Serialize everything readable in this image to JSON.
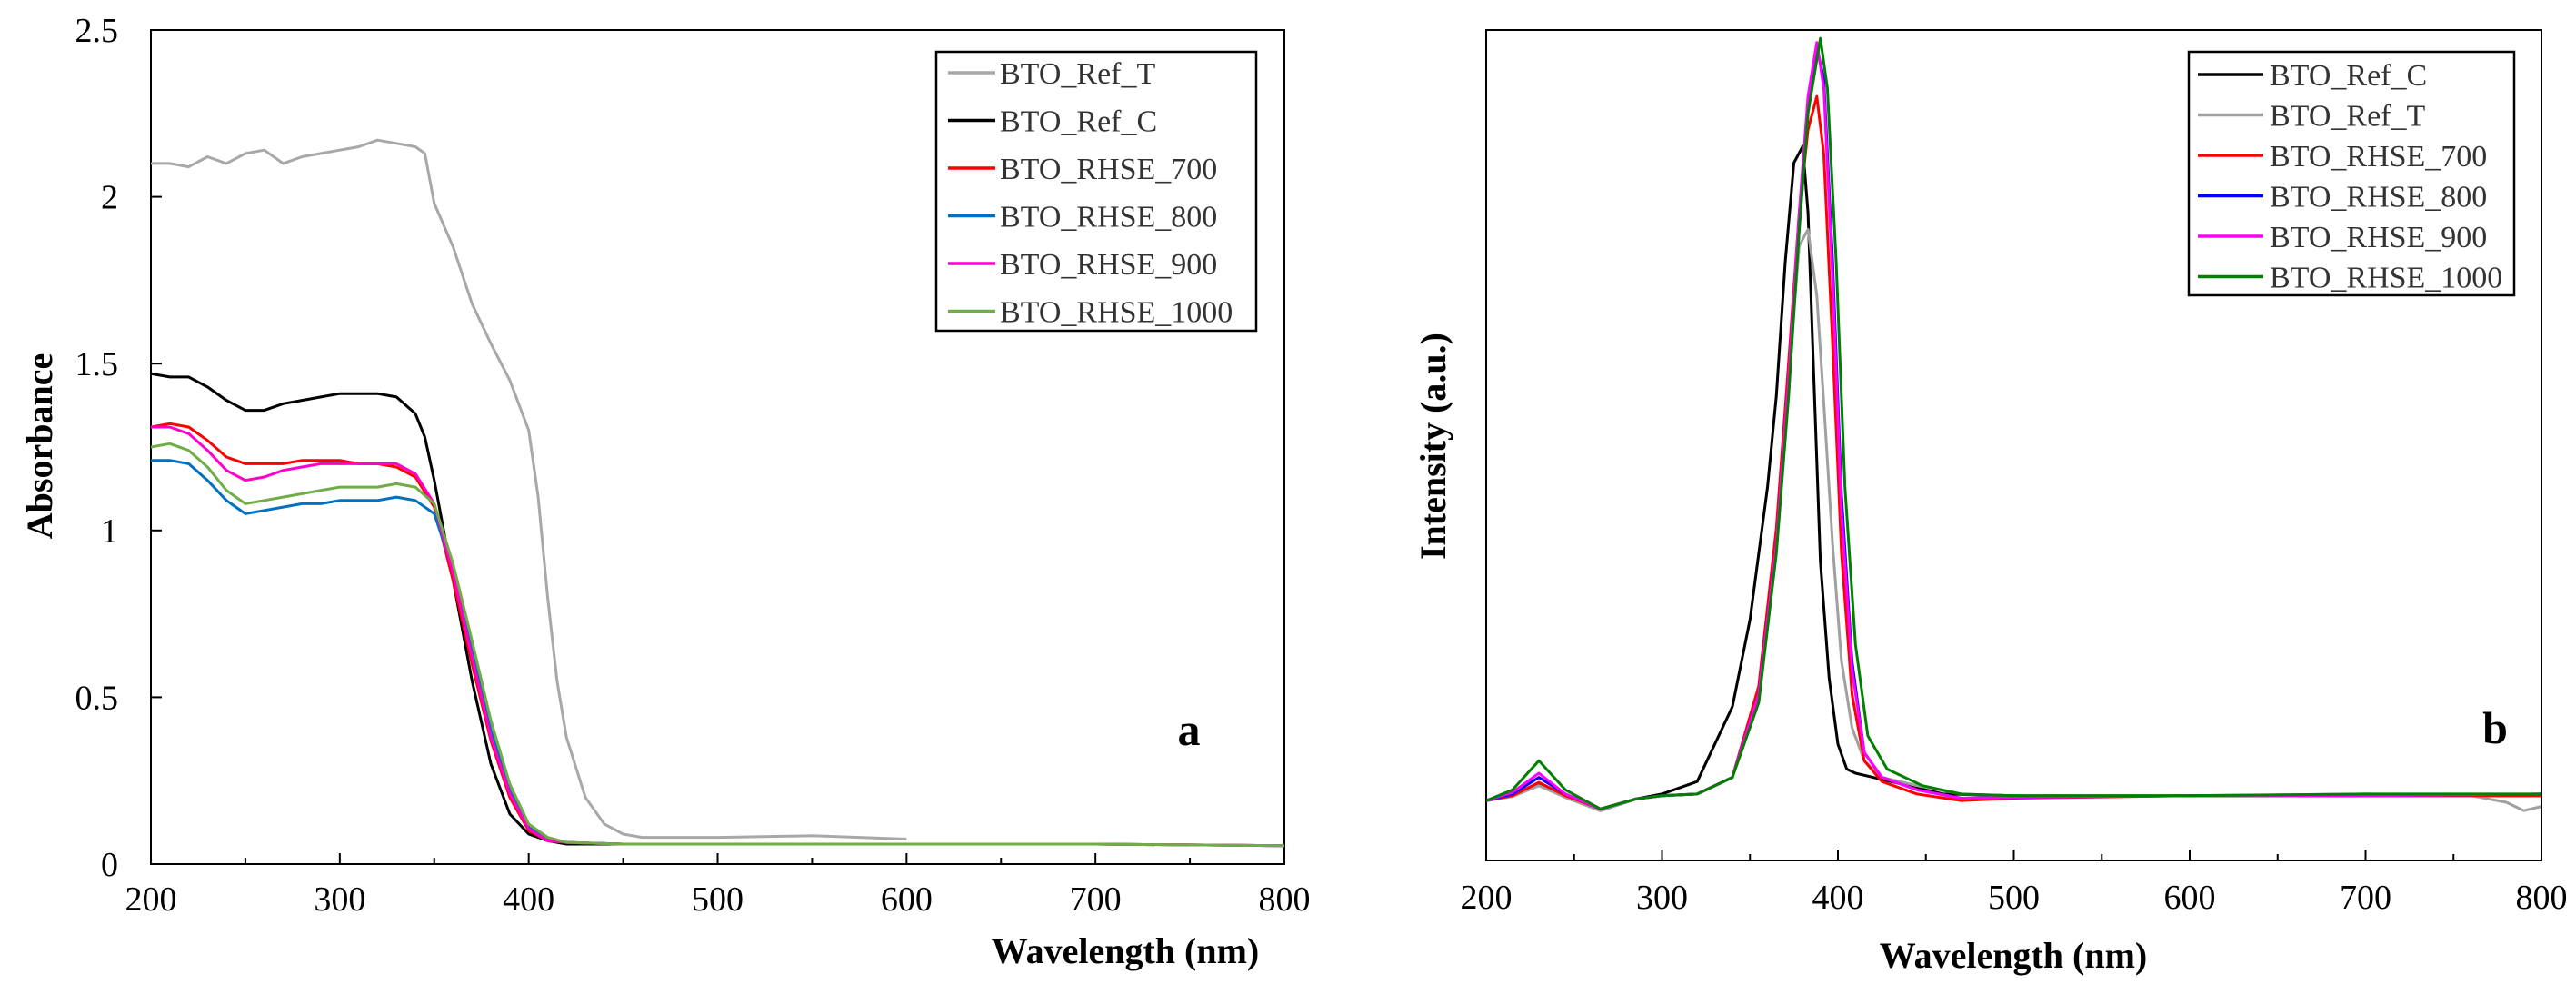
{
  "chart_data": [
    {
      "panel": "a",
      "type": "line",
      "title": "",
      "xlabel": "Wavelength (nm)",
      "ylabel": "Absorbance",
      "xlim": [
        200,
        800
      ],
      "ylim": [
        0,
        2.5
      ],
      "xticks": [
        200,
        300,
        400,
        500,
        600,
        700,
        800
      ],
      "yticks": [
        0,
        0.5,
        1,
        1.5,
        2,
        2.5
      ],
      "ytick_labels": [
        "0",
        "0.5",
        "1",
        "1.5",
        "2",
        "2.5"
      ],
      "legend": "top-right",
      "letter_label": "a",
      "series": [
        {
          "name": "BTO_Ref_T",
          "color": "#a8a8a8",
          "x": [
            200,
            210,
            220,
            230,
            240,
            250,
            260,
            270,
            280,
            290,
            300,
            310,
            320,
            330,
            340,
            345,
            350,
            360,
            370,
            380,
            390,
            400,
            405,
            410,
            415,
            420,
            430,
            440,
            450,
            460,
            480,
            500,
            550,
            600
          ],
          "y": [
            2.1,
            2.1,
            2.09,
            2.12,
            2.1,
            2.13,
            2.14,
            2.1,
            2.12,
            2.13,
            2.14,
            2.15,
            2.17,
            2.16,
            2.15,
            2.13,
            1.98,
            1.85,
            1.68,
            1.56,
            1.45,
            1.3,
            1.1,
            0.8,
            0.55,
            0.38,
            0.2,
            0.12,
            0.09,
            0.08,
            0.08,
            0.08,
            0.085,
            0.075
          ]
        },
        {
          "name": "BTO_Ref_C",
          "color": "#000000",
          "x": [
            200,
            210,
            220,
            230,
            240,
            250,
            260,
            270,
            280,
            290,
            300,
            310,
            320,
            330,
            340,
            345,
            350,
            360,
            370,
            380,
            390,
            400,
            410,
            420,
            450,
            500,
            520
          ],
          "y": [
            1.47,
            1.46,
            1.46,
            1.43,
            1.39,
            1.36,
            1.36,
            1.38,
            1.39,
            1.4,
            1.41,
            1.41,
            1.41,
            1.4,
            1.35,
            1.28,
            1.15,
            0.85,
            0.55,
            0.3,
            0.15,
            0.09,
            0.07,
            0.06,
            0.06,
            0.06,
            0.06
          ]
        },
        {
          "name": "BTO_RHSE_700",
          "color": "#ff0000",
          "x": [
            200,
            210,
            220,
            230,
            240,
            250,
            260,
            270,
            280,
            290,
            300,
            310,
            320,
            330,
            340,
            350,
            360,
            370,
            380,
            390,
            400,
            410,
            420,
            450,
            500,
            600,
            700,
            800
          ],
          "y": [
            1.31,
            1.32,
            1.31,
            1.27,
            1.22,
            1.2,
            1.2,
            1.2,
            1.21,
            1.21,
            1.21,
            1.2,
            1.2,
            1.19,
            1.16,
            1.07,
            0.85,
            0.6,
            0.37,
            0.2,
            0.1,
            0.07,
            0.065,
            0.06,
            0.06,
            0.06,
            0.06,
            0.055
          ]
        },
        {
          "name": "BTO_RHSE_800",
          "color": "#0070c0",
          "x": [
            200,
            210,
            220,
            230,
            240,
            250,
            260,
            270,
            280,
            290,
            300,
            310,
            320,
            330,
            340,
            350,
            360,
            370,
            380,
            390,
            400,
            410,
            420,
            450,
            500,
            600,
            700,
            800
          ],
          "y": [
            1.21,
            1.21,
            1.2,
            1.15,
            1.09,
            1.05,
            1.06,
            1.07,
            1.08,
            1.08,
            1.09,
            1.09,
            1.09,
            1.1,
            1.09,
            1.05,
            0.88,
            0.64,
            0.4,
            0.22,
            0.11,
            0.075,
            0.065,
            0.06,
            0.06,
            0.06,
            0.06,
            0.055
          ]
        },
        {
          "name": "BTO_RHSE_900",
          "color": "#ff00cc",
          "x": [
            200,
            210,
            220,
            230,
            240,
            250,
            260,
            270,
            280,
            290,
            300,
            310,
            320,
            330,
            340,
            350,
            360,
            370,
            380,
            390,
            400,
            410,
            420,
            450,
            500,
            600,
            700,
            800
          ],
          "y": [
            1.31,
            1.31,
            1.29,
            1.24,
            1.18,
            1.15,
            1.16,
            1.18,
            1.19,
            1.2,
            1.2,
            1.2,
            1.2,
            1.2,
            1.17,
            1.08,
            0.87,
            0.62,
            0.38,
            0.21,
            0.105,
            0.07,
            0.065,
            0.06,
            0.06,
            0.06,
            0.06,
            0.055
          ]
        },
        {
          "name": "BTO_RHSE_1000",
          "color": "#70ad47",
          "x": [
            200,
            210,
            220,
            230,
            240,
            250,
            260,
            270,
            280,
            290,
            300,
            310,
            320,
            330,
            340,
            350,
            360,
            370,
            380,
            390,
            400,
            410,
            420,
            450,
            500,
            600,
            700,
            800
          ],
          "y": [
            1.25,
            1.26,
            1.24,
            1.19,
            1.12,
            1.08,
            1.09,
            1.1,
            1.11,
            1.12,
            1.13,
            1.13,
            1.13,
            1.14,
            1.13,
            1.08,
            0.9,
            0.67,
            0.43,
            0.24,
            0.12,
            0.08,
            0.065,
            0.06,
            0.06,
            0.06,
            0.06,
            0.055
          ]
        }
      ]
    },
    {
      "panel": "b",
      "type": "line",
      "title": "",
      "xlabel": "Wavelength (nm)",
      "ylabel": "Intensity (a.u.)",
      "xlim": [
        200,
        800
      ],
      "ylim": [
        0,
        1
      ],
      "xticks": [
        200,
        300,
        400,
        500,
        600,
        700,
        800
      ],
      "yticks": [],
      "legend": "top-right",
      "letter_label": "b",
      "series": [
        {
          "name": "BTO_Ref_C",
          "color": "#000000",
          "x": [
            200,
            215,
            230,
            245,
            265,
            285,
            300,
            320,
            340,
            350,
            360,
            365,
            370,
            375,
            380,
            383,
            386,
            390,
            395,
            400,
            405,
            410,
            420,
            440,
            460,
            500,
            600,
            700,
            800
          ],
          "y": [
            0.072,
            0.078,
            0.092,
            0.076,
            0.06,
            0.074,
            0.08,
            0.095,
            0.185,
            0.29,
            0.45,
            0.56,
            0.72,
            0.84,
            0.86,
            0.78,
            0.6,
            0.36,
            0.22,
            0.14,
            0.11,
            0.105,
            0.1,
            0.09,
            0.08,
            0.078,
            0.078,
            0.078,
            0.078
          ]
        },
        {
          "name": "BTO_Ref_T",
          "color": "#a0a0a0",
          "x": [
            200,
            215,
            230,
            245,
            265,
            285,
            300,
            320,
            340,
            355,
            365,
            372,
            378,
            383,
            388,
            392,
            397,
            402,
            408,
            415,
            425,
            445,
            470,
            500,
            600,
            700,
            760,
            780,
            790,
            800
          ],
          "y": [
            0.072,
            0.077,
            0.09,
            0.076,
            0.06,
            0.074,
            0.078,
            0.08,
            0.1,
            0.2,
            0.38,
            0.58,
            0.74,
            0.76,
            0.68,
            0.55,
            0.38,
            0.24,
            0.16,
            0.12,
            0.1,
            0.09,
            0.08,
            0.078,
            0.078,
            0.08,
            0.078,
            0.07,
            0.06,
            0.065
          ]
        },
        {
          "name": "BTO_RHSE_700",
          "color": "#ff0000",
          "x": [
            200,
            215,
            230,
            245,
            265,
            285,
            300,
            320,
            340,
            355,
            365,
            372,
            378,
            383,
            388,
            392,
            397,
            402,
            408,
            415,
            425,
            445,
            470,
            500,
            600,
            700,
            800
          ],
          "y": [
            0.072,
            0.078,
            0.094,
            0.078,
            0.062,
            0.074,
            0.078,
            0.08,
            0.1,
            0.21,
            0.4,
            0.6,
            0.78,
            0.88,
            0.92,
            0.85,
            0.62,
            0.37,
            0.2,
            0.12,
            0.095,
            0.08,
            0.072,
            0.075,
            0.078,
            0.078,
            0.078
          ]
        },
        {
          "name": "BTO_RHSE_800",
          "color": "#0000ff",
          "x": [
            200,
            215,
            230,
            245,
            265,
            285,
            300,
            320,
            340,
            355,
            365,
            372,
            378,
            383,
            388,
            392,
            397,
            402,
            408,
            415,
            425,
            445,
            470,
            500,
            600,
            700,
            800
          ],
          "y": [
            0.072,
            0.08,
            0.1,
            0.08,
            0.062,
            0.074,
            0.078,
            0.08,
            0.1,
            0.2,
            0.38,
            0.57,
            0.76,
            0.9,
            0.98,
            0.94,
            0.72,
            0.44,
            0.24,
            0.13,
            0.1,
            0.085,
            0.075,
            0.076,
            0.078,
            0.078,
            0.08
          ]
        },
        {
          "name": "BTO_RHSE_900",
          "color": "#ff00ff",
          "x": [
            200,
            215,
            230,
            245,
            265,
            285,
            300,
            320,
            340,
            355,
            365,
            372,
            378,
            383,
            388,
            392,
            397,
            402,
            408,
            415,
            425,
            445,
            470,
            500,
            600,
            700,
            800
          ],
          "y": [
            0.072,
            0.082,
            0.105,
            0.08,
            0.062,
            0.074,
            0.078,
            0.08,
            0.1,
            0.2,
            0.38,
            0.58,
            0.78,
            0.92,
            0.985,
            0.93,
            0.7,
            0.42,
            0.23,
            0.13,
            0.1,
            0.085,
            0.075,
            0.076,
            0.078,
            0.078,
            0.08
          ]
        },
        {
          "name": "BTO_RHSE_1000",
          "color": "#008000",
          "x": [
            200,
            215,
            230,
            245,
            265,
            285,
            300,
            320,
            340,
            355,
            365,
            372,
            378,
            383,
            390,
            394,
            399,
            404,
            410,
            417,
            428,
            448,
            470,
            500,
            600,
            700,
            800
          ],
          "y": [
            0.072,
            0.085,
            0.12,
            0.085,
            0.062,
            0.074,
            0.078,
            0.08,
            0.1,
            0.19,
            0.37,
            0.56,
            0.76,
            0.9,
            0.99,
            0.93,
            0.72,
            0.45,
            0.26,
            0.15,
            0.11,
            0.09,
            0.08,
            0.078,
            0.078,
            0.08,
            0.08
          ]
        }
      ]
    }
  ]
}
